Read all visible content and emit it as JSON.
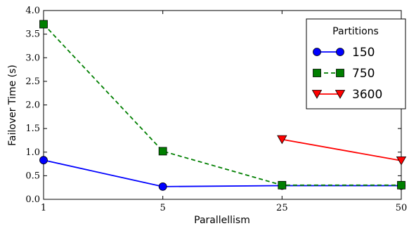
{
  "chart_data": {
    "type": "line",
    "xlabel": "Parallellism",
    "ylabel": "Failover Time (s)",
    "categories": [
      "1",
      "5",
      "25",
      "50"
    ],
    "ylim": [
      0.0,
      4.0
    ],
    "yticks": [
      "0.0",
      "0.5",
      "1.0",
      "1.5",
      "2.0",
      "2.5",
      "3.0",
      "3.5",
      "4.0"
    ],
    "legend": {
      "title": "Partitions",
      "position": "top-right"
    },
    "series": [
      {
        "name": "150",
        "color": "#0000ff",
        "line": "solid",
        "marker": "circle",
        "values": [
          0.83,
          0.27,
          0.29,
          0.29
        ]
      },
      {
        "name": "750",
        "color": "#007f00",
        "line": "dashed",
        "marker": "square",
        "values": [
          3.71,
          1.02,
          0.3,
          0.3
        ]
      },
      {
        "name": "3600",
        "color": "#ff0000",
        "line": "solid",
        "marker": "triangle-down",
        "values": [
          null,
          null,
          1.27,
          0.82
        ]
      }
    ]
  }
}
